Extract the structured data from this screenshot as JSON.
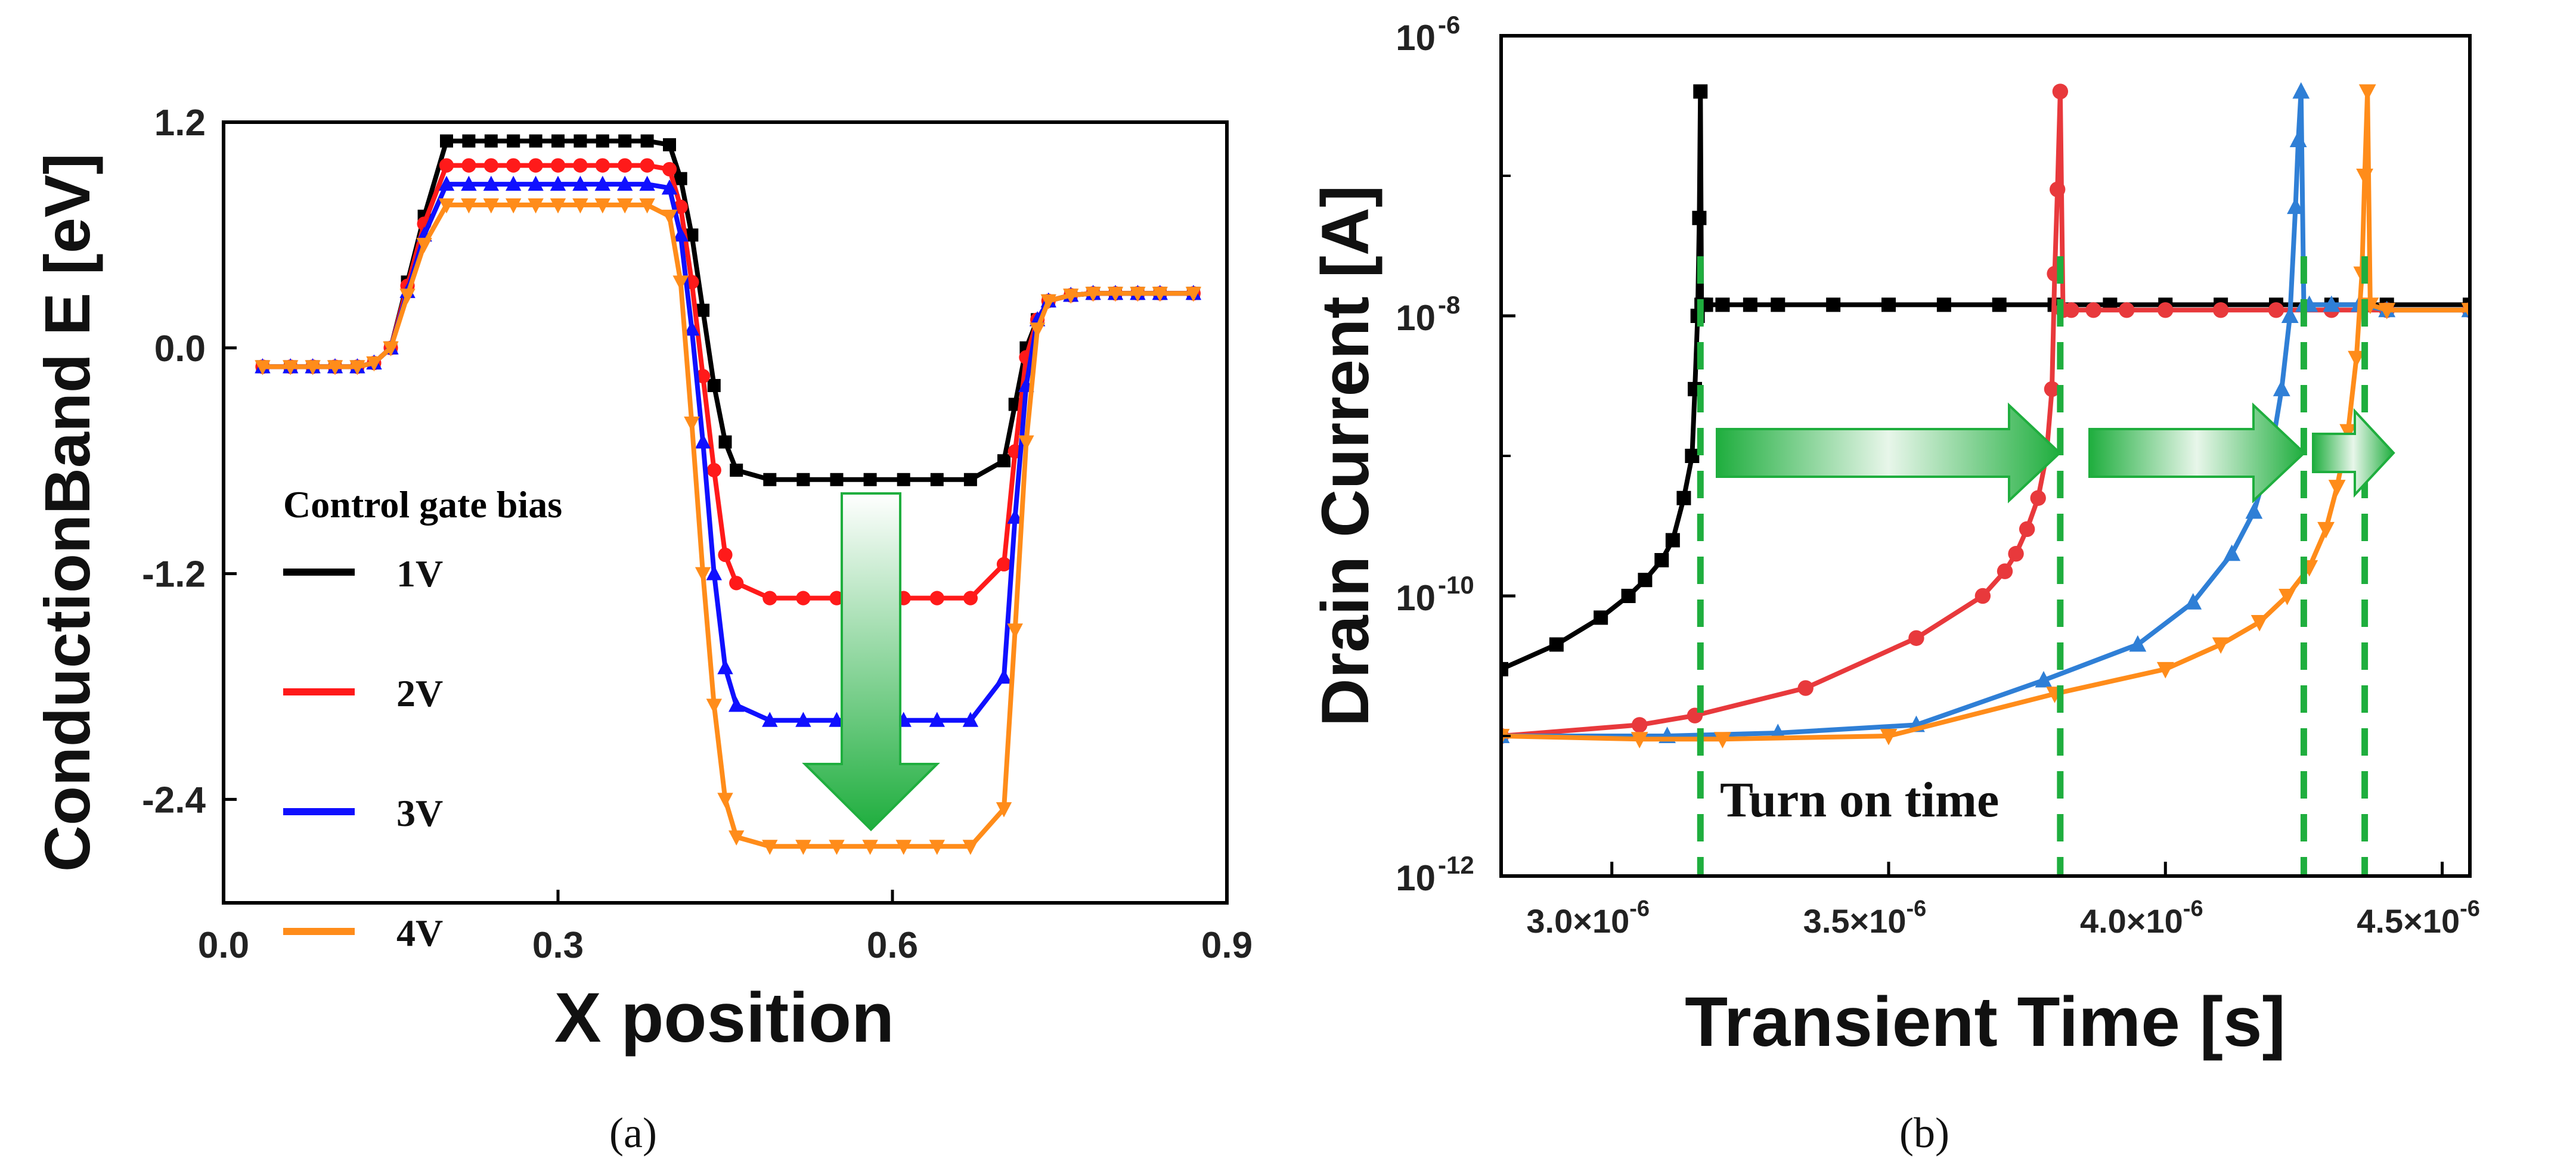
{
  "chart_data": [
    {
      "panel_label": "(a)",
      "type": "line",
      "xlabel": "X position",
      "ylabel": "ConductionBand E [eV]",
      "xlim": [
        0.0,
        0.9
      ],
      "ylim": [
        -2.95,
        1.2
      ],
      "xticks": [
        0.0,
        0.3,
        0.6,
        0.9
      ],
      "xtick_labels": [
        "0.0",
        "0.3",
        "0.6",
        "0.9"
      ],
      "yticks": [
        1.2,
        0.0,
        -1.2,
        -2.4
      ],
      "ytick_labels": [
        "1.2",
        "0.0",
        "-1.2",
        "-2.4"
      ],
      "legend_title": "Control gate bias",
      "legend_position": "lower-left",
      "annotation": "downward arrow",
      "series": [
        {
          "name": "1V",
          "color": "#000000",
          "marker": "square",
          "x": [
            0.035,
            0.06,
            0.08,
            0.1,
            0.12,
            0.135,
            0.15,
            0.165,
            0.18,
            0.2,
            0.22,
            0.24,
            0.26,
            0.28,
            0.3,
            0.32,
            0.34,
            0.36,
            0.38,
            0.4,
            0.41,
            0.42,
            0.43,
            0.44,
            0.45,
            0.46,
            0.49,
            0.52,
            0.55,
            0.58,
            0.61,
            0.64,
            0.67,
            0.7,
            0.71,
            0.72,
            0.73,
            0.74,
            0.76,
            0.78,
            0.8,
            0.82,
            0.84,
            0.87
          ],
          "y": [
            -0.1,
            -0.1,
            -0.1,
            -0.1,
            -0.1,
            -0.08,
            0.0,
            0.35,
            0.7,
            1.1,
            1.1,
            1.1,
            1.1,
            1.1,
            1.1,
            1.1,
            1.1,
            1.1,
            1.1,
            1.08,
            0.9,
            0.6,
            0.2,
            -0.2,
            -0.5,
            -0.65,
            -0.7,
            -0.7,
            -0.7,
            -0.7,
            -0.7,
            -0.7,
            -0.7,
            -0.6,
            -0.3,
            0.0,
            0.15,
            0.25,
            0.28,
            0.29,
            0.29,
            0.29,
            0.29,
            0.29
          ]
        },
        {
          "name": "2V",
          "color": "#ff1a1a",
          "marker": "circle",
          "x": [
            0.035,
            0.06,
            0.08,
            0.1,
            0.12,
            0.135,
            0.15,
            0.165,
            0.18,
            0.2,
            0.22,
            0.24,
            0.26,
            0.28,
            0.3,
            0.32,
            0.34,
            0.36,
            0.38,
            0.4,
            0.41,
            0.42,
            0.43,
            0.44,
            0.45,
            0.46,
            0.49,
            0.52,
            0.55,
            0.58,
            0.61,
            0.64,
            0.67,
            0.7,
            0.71,
            0.72,
            0.73,
            0.74,
            0.76,
            0.78,
            0.8,
            0.82,
            0.84,
            0.87
          ],
          "y": [
            -0.1,
            -0.1,
            -0.1,
            -0.1,
            -0.1,
            -0.08,
            0.0,
            0.33,
            0.66,
            0.97,
            0.97,
            0.97,
            0.97,
            0.97,
            0.97,
            0.97,
            0.97,
            0.97,
            0.97,
            0.95,
            0.75,
            0.35,
            -0.15,
            -0.65,
            -1.1,
            -1.25,
            -1.33,
            -1.33,
            -1.33,
            -1.33,
            -1.33,
            -1.33,
            -1.33,
            -1.15,
            -0.55,
            -0.05,
            0.15,
            0.25,
            0.28,
            0.29,
            0.29,
            0.29,
            0.29,
            0.29
          ]
        },
        {
          "name": "3V",
          "color": "#1010ff",
          "marker": "triangle-up",
          "x": [
            0.035,
            0.06,
            0.08,
            0.1,
            0.12,
            0.135,
            0.15,
            0.165,
            0.18,
            0.2,
            0.22,
            0.24,
            0.26,
            0.28,
            0.3,
            0.32,
            0.34,
            0.36,
            0.38,
            0.4,
            0.41,
            0.42,
            0.43,
            0.44,
            0.45,
            0.46,
            0.49,
            0.52,
            0.55,
            0.58,
            0.61,
            0.64,
            0.67,
            0.7,
            0.71,
            0.72,
            0.73,
            0.74,
            0.76,
            0.78,
            0.8,
            0.82,
            0.84,
            0.87
          ],
          "y": [
            -0.1,
            -0.1,
            -0.1,
            -0.1,
            -0.1,
            -0.08,
            0.0,
            0.3,
            0.6,
            0.87,
            0.87,
            0.87,
            0.87,
            0.87,
            0.87,
            0.87,
            0.87,
            0.87,
            0.87,
            0.85,
            0.6,
            0.1,
            -0.5,
            -1.2,
            -1.7,
            -1.9,
            -1.98,
            -1.98,
            -1.98,
            -1.98,
            -1.98,
            -1.98,
            -1.98,
            -1.75,
            -0.9,
            -0.2,
            0.15,
            0.25,
            0.28,
            0.29,
            0.29,
            0.29,
            0.29,
            0.29
          ]
        },
        {
          "name": "4V",
          "color": "#ff8c1a",
          "marker": "triangle-down",
          "x": [
            0.035,
            0.06,
            0.08,
            0.1,
            0.12,
            0.135,
            0.15,
            0.165,
            0.18,
            0.2,
            0.22,
            0.24,
            0.26,
            0.28,
            0.3,
            0.32,
            0.34,
            0.36,
            0.38,
            0.4,
            0.41,
            0.42,
            0.43,
            0.44,
            0.45,
            0.46,
            0.49,
            0.52,
            0.55,
            0.58,
            0.61,
            0.64,
            0.67,
            0.7,
            0.71,
            0.72,
            0.73,
            0.74,
            0.76,
            0.78,
            0.8,
            0.82,
            0.84,
            0.87
          ],
          "y": [
            -0.1,
            -0.1,
            -0.1,
            -0.1,
            -0.1,
            -0.08,
            0.0,
            0.28,
            0.55,
            0.76,
            0.76,
            0.76,
            0.76,
            0.76,
            0.76,
            0.76,
            0.76,
            0.76,
            0.76,
            0.7,
            0.35,
            -0.4,
            -1.2,
            -1.9,
            -2.4,
            -2.6,
            -2.65,
            -2.65,
            -2.65,
            -2.65,
            -2.65,
            -2.65,
            -2.65,
            -2.45,
            -1.5,
            -0.5,
            0.1,
            0.25,
            0.28,
            0.29,
            0.29,
            0.29,
            0.29,
            0.29
          ]
        }
      ]
    },
    {
      "panel_label": "(b)",
      "type": "line",
      "xlabel": "Transient Time [s]",
      "ylabel": "Drain Current [A]",
      "xscale": "linear",
      "yscale": "log",
      "xlim": [
        2.8e-06,
        4.55e-06
      ],
      "ylim": [
        1e-12,
        1e-06
      ],
      "xticks": [
        3e-06,
        3.5e-06,
        4e-06,
        4.5e-06
      ],
      "xtick_labels": [
        {
          "base": "3.0×10",
          "exp": "-6"
        },
        {
          "base": "3.5×10",
          "exp": "-6"
        },
        {
          "base": "4.0×10",
          "exp": "-6"
        },
        {
          "base": "4.5×10",
          "exp": "-6"
        }
      ],
      "yticks": [
        1e-06,
        1e-08,
        1e-10,
        1e-12
      ],
      "ytick_labels": [
        {
          "base": "10",
          "exp": "-6"
        },
        {
          "base": "10",
          "exp": "-8"
        },
        {
          "base": "10",
          "exp": "-10"
        },
        {
          "base": "10",
          "exp": "-12"
        }
      ],
      "annotation": "Turn on time",
      "turn_on_times": [
        3.16e-06,
        3.81e-06,
        4.25e-06,
        4.36e-06
      ],
      "series": [
        {
          "name": "1V",
          "color": "#000000",
          "marker": "square",
          "x": [
            2.8e-06,
            2.9e-06,
            2.98e-06,
            3.03e-06,
            3.06e-06,
            3.09e-06,
            3.11e-06,
            3.13e-06,
            3.145e-06,
            3.15e-06,
            3.155e-06,
            3.158e-06,
            3.16e-06,
            3.162e-06,
            3.165e-06,
            3.17e-06,
            3.2e-06,
            3.25e-06,
            3.3e-06,
            3.4e-06,
            3.5e-06,
            3.6e-06,
            3.7e-06,
            3.8e-06,
            3.9e-06,
            4e-06,
            4.1e-06,
            4.2e-06,
            4.3e-06,
            4.4e-06,
            4.55e-06
          ],
          "y": [
            3e-11,
            4.5e-11,
            7e-11,
            1e-10,
            1.3e-10,
            1.8e-10,
            2.5e-10,
            5e-10,
            1e-09,
            3e-09,
            1e-08,
            5e-08,
            4e-07,
            1.2e-08,
            1.2e-08,
            1.2e-08,
            1.2e-08,
            1.2e-08,
            1.2e-08,
            1.2e-08,
            1.2e-08,
            1.2e-08,
            1.2e-08,
            1.2e-08,
            1.2e-08,
            1.2e-08,
            1.2e-08,
            1.2e-08,
            1.2e-08,
            1.2e-08,
            1.2e-08
          ]
        },
        {
          "name": "2V",
          "color": "#e8393c",
          "marker": "circle",
          "x": [
            2.8e-06,
            3.05e-06,
            3.15e-06,
            3.35e-06,
            3.55e-06,
            3.67e-06,
            3.71e-06,
            3.73e-06,
            3.75e-06,
            3.77e-06,
            3.785e-06,
            3.795e-06,
            3.8e-06,
            3.805e-06,
            3.81e-06,
            3.815e-06,
            3.83e-06,
            3.87e-06,
            3.93e-06,
            4e-06,
            4.1e-06,
            4.2e-06,
            4.3e-06,
            4.4e-06,
            4.55e-06
          ],
          "y": [
            1e-11,
            1.2e-11,
            1.4e-11,
            2.2e-11,
            5e-11,
            1e-10,
            1.5e-10,
            2e-10,
            3e-10,
            5e-10,
            1e-09,
            3e-09,
            2e-08,
            8e-08,
            4e-07,
            1.1e-08,
            1.1e-08,
            1.1e-08,
            1.1e-08,
            1.1e-08,
            1.1e-08,
            1.1e-08,
            1.1e-08,
            1.1e-08,
            1.1e-08
          ]
        },
        {
          "name": "3V",
          "color": "#2f7fd6",
          "marker": "triangle-up",
          "x": [
            2.8e-06,
            3.1e-06,
            3.3e-06,
            3.55e-06,
            3.78e-06,
            3.95e-06,
            4.05e-06,
            4.12e-06,
            4.16e-06,
            4.19e-06,
            4.21e-06,
            4.225e-06,
            4.235e-06,
            4.24e-06,
            4.245e-06,
            4.25e-06,
            4.26e-06,
            4.3e-06,
            4.35e-06,
            4.4e-06,
            4.55e-06
          ],
          "y": [
            1e-11,
            1e-11,
            1.05e-11,
            1.2e-11,
            2.5e-11,
            4.5e-11,
            9e-11,
            2e-10,
            4e-10,
            1e-09,
            3e-09,
            1e-08,
            6e-08,
            1.8e-07,
            4e-07,
            1.2e-08,
            1.2e-08,
            1.2e-08,
            1.2e-08,
            1.1e-08,
            1.1e-08
          ]
        },
        {
          "name": "4V",
          "color": "#ff8c1a",
          "marker": "triangle-down",
          "x": [
            2.8e-06,
            3.05e-06,
            3.2e-06,
            3.5e-06,
            3.8e-06,
            4e-06,
            4.1e-06,
            4.17e-06,
            4.22e-06,
            4.26e-06,
            4.29e-06,
            4.31e-06,
            4.33e-06,
            4.345e-06,
            4.355e-06,
            4.36e-06,
            4.365e-06,
            4.37e-06,
            4.4e-06,
            4.55e-06
          ],
          "y": [
            1e-11,
            9.5e-12,
            9.5e-12,
            1e-11,
            2e-11,
            3e-11,
            4.5e-11,
            6.5e-11,
            1e-10,
            1.6e-10,
            3e-10,
            6e-10,
            1.5e-09,
            5e-09,
            2e-08,
            1e-07,
            4e-07,
            1.2e-08,
            1.1e-08,
            1.1e-08
          ]
        }
      ]
    }
  ]
}
